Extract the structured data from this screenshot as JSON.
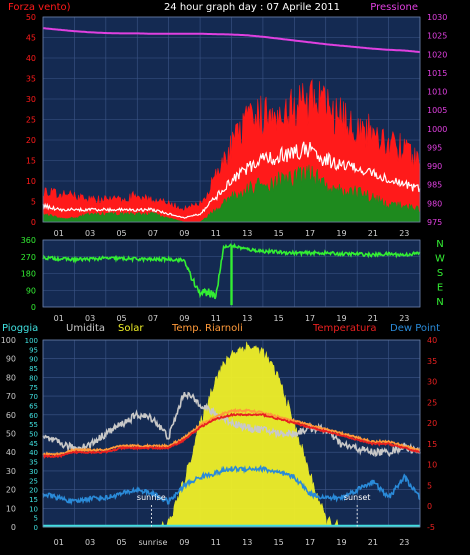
{
  "colors": {
    "background": "#000000",
    "panel": "#142a52",
    "grid": "#3d5688",
    "wind_max": "#ff1a1a",
    "wind_avg": "#ffffff",
    "wind_min": "#1e8a1e",
    "pressure": "#e040e0",
    "direction": "#33ee33",
    "rain": "#40e0e0",
    "humidity": "#c8c8c8",
    "solar": "#f0f028",
    "apparent": "#ff9a3a",
    "temperature": "#e82020",
    "dewpoint": "#2a8ad8",
    "left_axis_top": "#c8c8c8",
    "left_axis_bottom": "#c8c8c8",
    "right_axis_bottom": "#e82020"
  },
  "header": {
    "left": "Forza vento)",
    "center": "24 hour graph day : 07 Aprile 2011",
    "right": "Pressione"
  },
  "chart_data": [
    {
      "type": "line",
      "name": "wind-pressure",
      "title": "24 hour graph day : 07 Aprile 2011",
      "ylabel": "Forza vento)",
      "y2label": "Pressione",
      "x_ticks": [
        "01",
        "03",
        "05",
        "07",
        "09",
        "11",
        "13",
        "15",
        "17",
        "19",
        "21",
        "23"
      ],
      "ylim": [
        0,
        50
      ],
      "y_ticks": [
        0,
        5,
        10,
        15,
        20,
        25,
        30,
        35,
        40,
        45,
        50
      ],
      "y2lim": [
        975,
        1030
      ],
      "y2_ticks": [
        975,
        980,
        985,
        990,
        995,
        1000,
        1005,
        1010,
        1015,
        1020,
        1025,
        1030
      ],
      "hours": [
        0,
        1,
        2,
        3,
        4,
        5,
        6,
        7,
        8,
        9,
        10,
        11,
        12,
        13,
        14,
        15,
        16,
        17,
        18,
        19,
        20,
        21,
        22,
        23,
        24
      ],
      "wind_max": [
        7,
        6,
        6,
        5,
        5,
        5,
        6,
        5,
        4,
        3,
        4,
        10,
        17,
        22,
        24,
        25,
        26,
        27,
        26,
        23,
        21,
        20,
        18,
        16,
        13
      ],
      "wind_avg": [
        4,
        3,
        3,
        3,
        3,
        3,
        3,
        3,
        2,
        1,
        2,
        6,
        10,
        13,
        15,
        16,
        17,
        18,
        15,
        14,
        13,
        12,
        10,
        9,
        8
      ],
      "wind_min": [
        2,
        1,
        1,
        2,
        2,
        2,
        2,
        2,
        1,
        0,
        0,
        3,
        6,
        8,
        9,
        10,
        11,
        12,
        9,
        8,
        7,
        6,
        4,
        4,
        3
      ],
      "pressure": [
        1027.0,
        1026.6,
        1026.2,
        1025.9,
        1025.7,
        1025.6,
        1025.6,
        1025.5,
        1025.5,
        1025.5,
        1025.5,
        1025.4,
        1025.3,
        1025.1,
        1024.7,
        1024.2,
        1023.7,
        1023.2,
        1022.7,
        1022.3,
        1021.9,
        1021.5,
        1021.2,
        1021.0,
        1020.6
      ]
    },
    {
      "type": "line",
      "name": "wind-direction",
      "x_ticks": [
        "01",
        "03",
        "05",
        "07",
        "09",
        "11",
        "13",
        "15",
        "17",
        "19",
        "21",
        "23"
      ],
      "ylim": [
        0,
        360
      ],
      "y_ticks": [
        0,
        90,
        180,
        270,
        360
      ],
      "compass_labels": [
        "N",
        "W",
        "S",
        "E",
        "N"
      ],
      "hours": [
        0,
        1,
        2,
        3,
        4,
        5,
        6,
        7,
        8,
        9,
        9.5,
        10,
        10.5,
        11,
        11.5,
        12,
        13,
        14,
        15,
        16,
        17,
        18,
        19,
        20,
        21,
        22,
        23,
        24
      ],
      "direction": [
        265,
        260,
        255,
        258,
        262,
        260,
        258,
        255,
        258,
        250,
        150,
        70,
        80,
        60,
        320,
        330,
        310,
        300,
        295,
        290,
        290,
        290,
        285,
        285,
        280,
        285,
        280,
        290
      ]
    },
    {
      "type": "area",
      "name": "temp-humidity",
      "legend": [
        "Pioggia",
        "Umidita",
        "Solar",
        "Temp. Riarnoli",
        "Temperatura",
        "Dew Point"
      ],
      "x_ticks": [
        "01",
        "03",
        "05",
        "sunrise",
        "09",
        "11",
        "13",
        "15",
        "17",
        "19",
        "21",
        "23"
      ],
      "ylim": [
        0,
        100
      ],
      "y_ticks": [
        0,
        10,
        20,
        30,
        40,
        50,
        60,
        70,
        80,
        90,
        100
      ],
      "y_mid_ticks": [
        0,
        5,
        10,
        15,
        20,
        25,
        30,
        35,
        40,
        45,
        50,
        55,
        60,
        65,
        70,
        75,
        80,
        85,
        90,
        95,
        100
      ],
      "y2lim": [
        -5,
        40
      ],
      "y2_ticks": [
        -5,
        0,
        5,
        10,
        15,
        20,
        25,
        30,
        35,
        40
      ],
      "annotations": [
        "sunrise",
        "sunset"
      ],
      "sunrise_hour": 6.9,
      "sunset_hour": 20.0,
      "hours": [
        0,
        1,
        2,
        3,
        4,
        5,
        6,
        7,
        8,
        9,
        10,
        11,
        12,
        13,
        14,
        15,
        16,
        17,
        18,
        19,
        20,
        21,
        22,
        23,
        24
      ],
      "humidity": [
        48,
        45,
        42,
        44,
        50,
        55,
        60,
        58,
        48,
        72,
        66,
        60,
        56,
        53,
        52,
        50,
        50,
        53,
        52,
        44,
        42,
        40,
        40,
        43,
        40
      ],
      "temperature": [
        12,
        12,
        13,
        13,
        13,
        14,
        14,
        14,
        14,
        16,
        19,
        21,
        22,
        22,
        22,
        21,
        20,
        19,
        18,
        17,
        16,
        15,
        15,
        14,
        13
      ],
      "apparent": [
        12.5,
        12.5,
        13.5,
        13.5,
        13.5,
        14.5,
        14.5,
        14.5,
        14.5,
        16.5,
        19.5,
        21.5,
        23,
        23,
        22.5,
        21.5,
        20.5,
        19.5,
        18.5,
        17.5,
        16.5,
        15.5,
        15.5,
        14.5,
        13.5
      ],
      "dewpoint": [
        3,
        2,
        1,
        2,
        2,
        3,
        4,
        3,
        1,
        5,
        7,
        8,
        9,
        9,
        9,
        8,
        7,
        3,
        2,
        2,
        4,
        6,
        2,
        7,
        2
      ],
      "solar": [
        0,
        0,
        0,
        0,
        0,
        0,
        0,
        0,
        2,
        25,
        55,
        80,
        93,
        97,
        94,
        80,
        55,
        28,
        4,
        0,
        0,
        0,
        0,
        0,
        0
      ],
      "rain": [
        0,
        0,
        0,
        0,
        0,
        0,
        0,
        0,
        0,
        0,
        0,
        0,
        0,
        0,
        0,
        0,
        0,
        0,
        0,
        0,
        0,
        0,
        0,
        0,
        0
      ]
    }
  ]
}
